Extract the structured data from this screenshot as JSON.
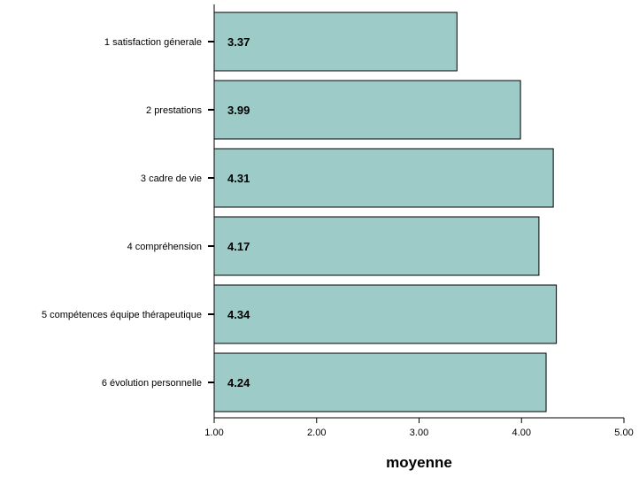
{
  "chart_data": {
    "type": "bar",
    "orientation": "horizontal",
    "categories": [
      "1 satisfaction génerale",
      "2 prestations",
      "3 cadre de vie",
      "4 compréhension",
      "5 compétences équipe thérapeutique",
      "6 évolution personnelle"
    ],
    "values": [
      3.37,
      3.99,
      4.31,
      4.17,
      4.34,
      4.24
    ],
    "value_labels": [
      "3.37",
      "3.99",
      "4.31",
      "4.17",
      "4.34",
      "4.24"
    ],
    "xlabel": "moyenne",
    "ylabel": "",
    "title": "",
    "xlim": [
      1,
      5
    ],
    "xticks": [
      1,
      2,
      3,
      4,
      5
    ],
    "xtick_labels": [
      "1.00",
      "2.00",
      "3.00",
      "4.00",
      "5.00"
    ],
    "grid": false,
    "colors": {
      "bar_fill": "#9ccbc8",
      "bar_stroke": "#000000",
      "axis": "#000000",
      "text": "#000000"
    }
  }
}
